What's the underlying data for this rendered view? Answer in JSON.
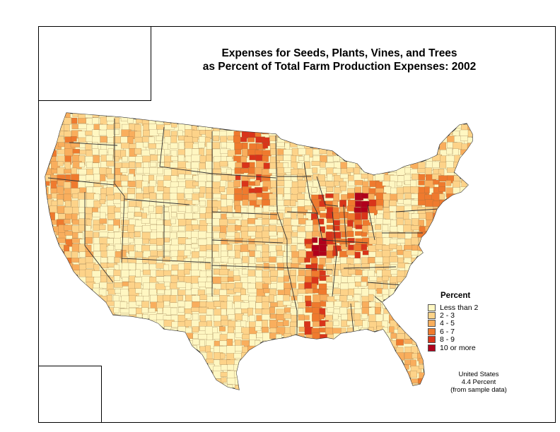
{
  "title": {
    "line1": "Expenses for Seeds, Plants, Vines, and Trees",
    "line2": "as Percent of Total Farm Production Expenses:  2002"
  },
  "legend": {
    "title": "Percent",
    "items": [
      {
        "label": "Less than 2",
        "color": "#FFF7C2"
      },
      {
        "label": "2 - 3",
        "color": "#FDD389"
      },
      {
        "label": "4 - 5",
        "color": "#F9AE5D"
      },
      {
        "label": "6 - 7",
        "color": "#EF7A2E"
      },
      {
        "label": "8 - 9",
        "color": "#D9341A"
      },
      {
        "label": "10 or more",
        "color": "#B0001C"
      }
    ]
  },
  "summary": {
    "line1": "United States",
    "line2": "4.4 Percent",
    "line3": "(from sample data)"
  },
  "colors": {
    "water": "#FFFFFF",
    "border": "#333333"
  }
}
